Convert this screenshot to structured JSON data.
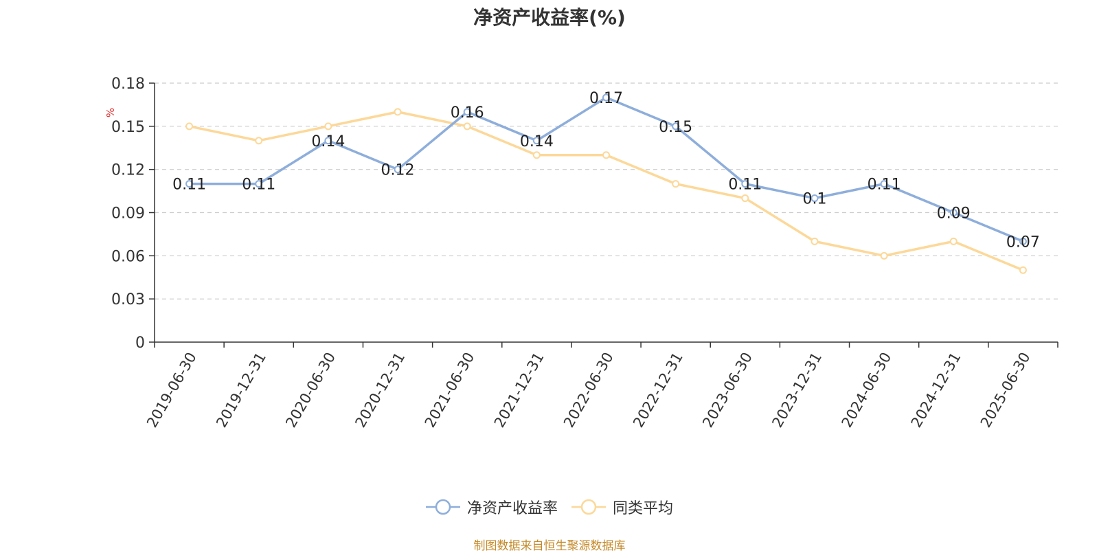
{
  "chart_data": {
    "type": "line",
    "title": "净资产收益率(%)",
    "ylabel": "%",
    "xlabel": "",
    "categories": [
      "2019-06-30",
      "2019-12-31",
      "2020-06-30",
      "2020-12-31",
      "2021-06-30",
      "2021-12-31",
      "2022-06-30",
      "2022-12-31",
      "2023-06-30",
      "2023-12-31",
      "2024-06-30",
      "2024-12-31",
      "2025-06-30"
    ],
    "ylim": [
      0,
      0.18
    ],
    "yticks": [
      "0",
      "0.03",
      "0.06",
      "0.09",
      "0.12",
      "0.15",
      "0.18"
    ],
    "grid": true,
    "legend_position": "bottom",
    "series": [
      {
        "name": "净资产收益率",
        "color": "#8eaedb",
        "show_labels": true,
        "values": [
          0.11,
          0.11,
          0.14,
          0.12,
          0.16,
          0.14,
          0.17,
          0.15,
          0.11,
          0.1,
          0.11,
          0.09,
          0.07
        ],
        "labels": [
          "0.11",
          "0.11",
          "0.14",
          "0.12",
          "0.16",
          "0.14",
          "0.17",
          "0.15",
          "0.11",
          "0.1",
          "0.11",
          "0.09",
          "0.07"
        ]
      },
      {
        "name": "同类平均",
        "color": "#fcd899",
        "show_labels": false,
        "values": [
          0.15,
          0.14,
          0.15,
          0.16,
          0.15,
          0.13,
          0.13,
          0.11,
          0.1,
          0.07,
          0.06,
          0.07,
          0.05
        ]
      }
    ]
  },
  "footer": {
    "source": "制图数据来自恒生聚源数据库"
  }
}
